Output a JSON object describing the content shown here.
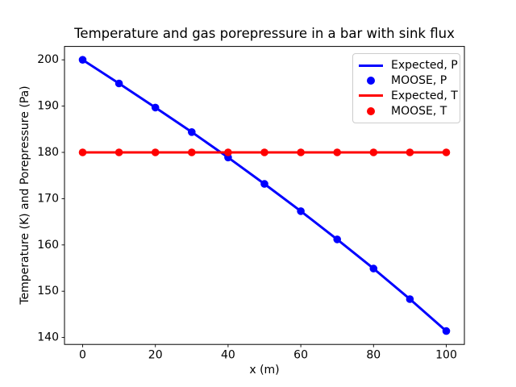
{
  "figure": {
    "background": "#ffffff",
    "text_color": "#000000",
    "spine_color": "#000000",
    "legend_border_color": "#cccccc"
  },
  "chart_data": {
    "type": "line",
    "title": "Temperature and gas porepressure in a bar with sink flux",
    "xlabel": "x (m)",
    "ylabel": "Temperature (K) and Porepressure (Pa)",
    "xlim": [
      -5,
      105
    ],
    "ylim": [
      138.5,
      202.9
    ],
    "xticks": [
      0,
      20,
      40,
      60,
      80,
      100
    ],
    "yticks": [
      140,
      150,
      160,
      170,
      180,
      190,
      200
    ],
    "grid": false,
    "x": [
      0,
      10,
      20,
      30,
      40,
      50,
      60,
      70,
      80,
      90,
      100
    ],
    "series": [
      {
        "name": "Expected, P",
        "style": "line",
        "color": "#0000ff",
        "values": [
          200.0,
          194.9,
          189.7,
          184.4,
          178.9,
          173.2,
          167.3,
          161.2,
          154.9,
          148.3,
          141.4
        ]
      },
      {
        "name": "MOOSE, P",
        "style": "markers",
        "color": "#0000ff",
        "values": [
          200.0,
          194.9,
          189.7,
          184.4,
          178.9,
          173.2,
          167.3,
          161.2,
          154.9,
          148.3,
          141.4
        ]
      },
      {
        "name": "Expected, T",
        "style": "line",
        "color": "#ff0000",
        "values": [
          180,
          180,
          180,
          180,
          180,
          180,
          180,
          180,
          180,
          180,
          180
        ]
      },
      {
        "name": "MOOSE, T",
        "style": "markers",
        "color": "#ff0000",
        "values": [
          180,
          180,
          180,
          180,
          180,
          180,
          180,
          180,
          180,
          180,
          180
        ]
      }
    ],
    "legend": {
      "position": "upper right"
    }
  }
}
